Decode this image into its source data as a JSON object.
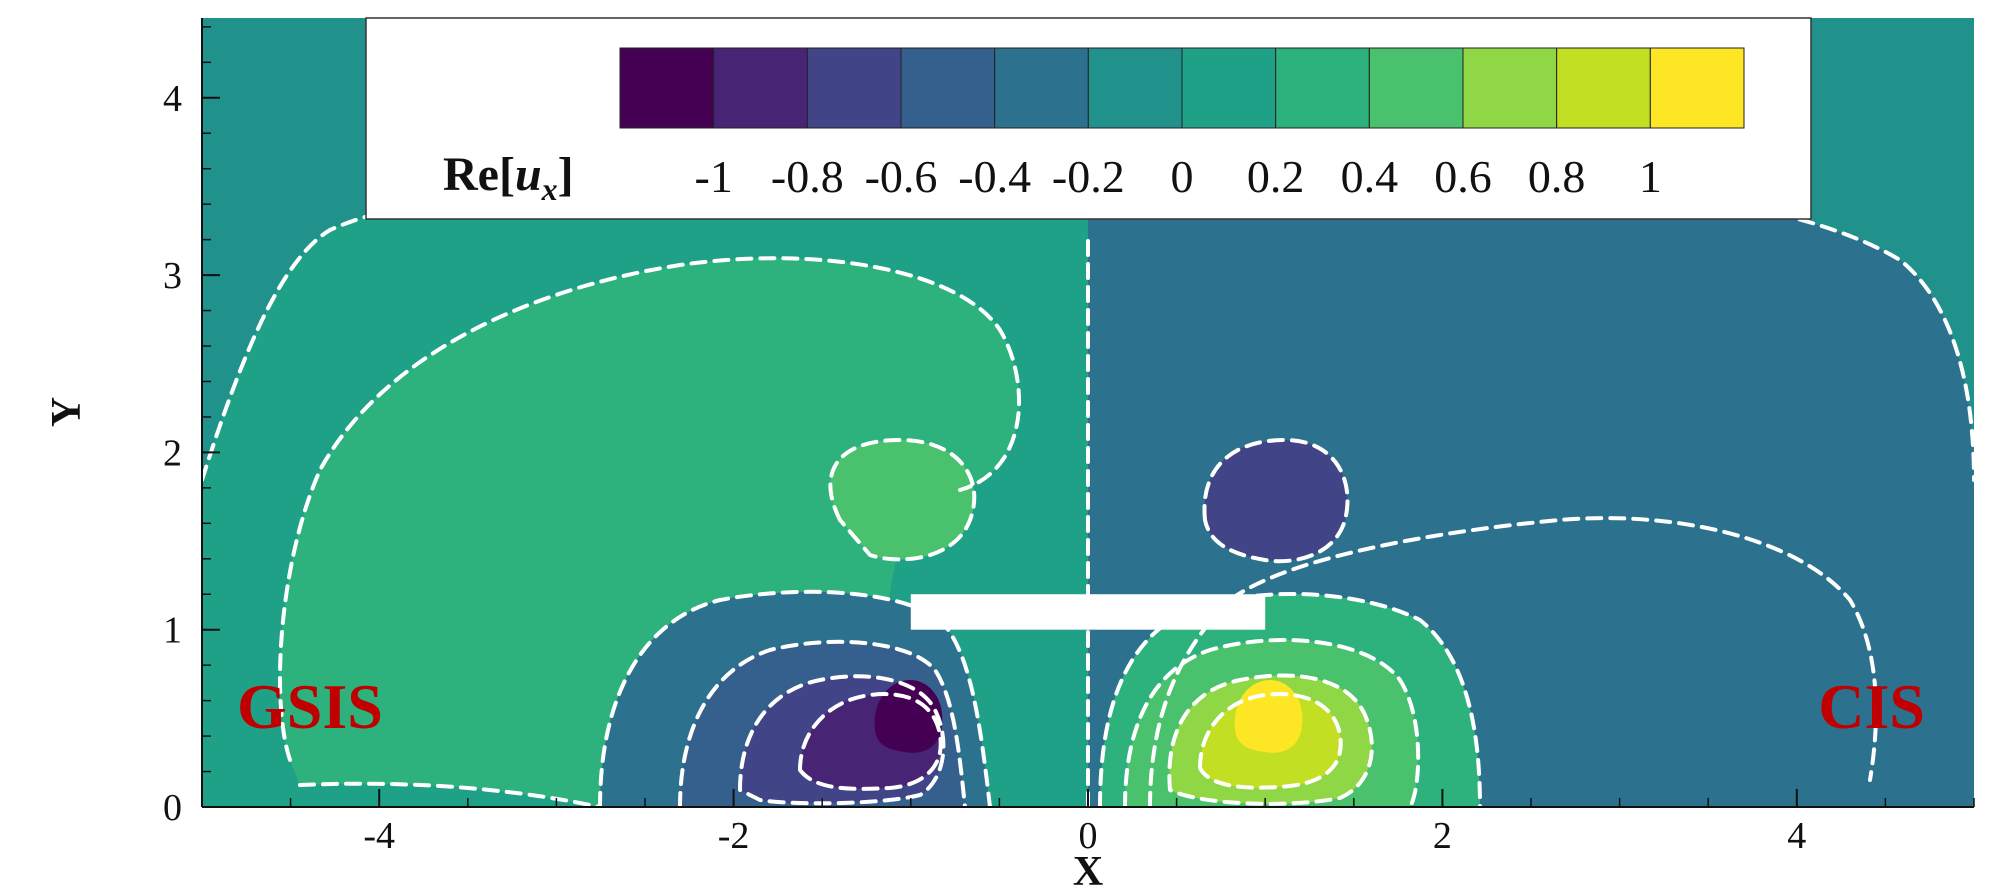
{
  "chart_data": {
    "type": "heatmap",
    "title": "",
    "xlabel": "X",
    "ylabel": "Y",
    "xlim": [
      -5,
      5
    ],
    "ylim": [
      0,
      4.45
    ],
    "x_ticks": [
      -4,
      -2,
      0,
      2,
      4
    ],
    "y_ticks": [
      0,
      1,
      2,
      3,
      4
    ],
    "colorbar": {
      "title_main": "Re[",
      "title_var": "u",
      "title_sub": "x",
      "title_end": "]",
      "levels": [
        -1,
        -0.8,
        -0.6,
        -0.4,
        -0.2,
        0,
        0.2,
        0.4,
        0.6,
        0.8,
        1
      ],
      "tick_labels": [
        "-1",
        "-0.8",
        "-0.6",
        "-0.4",
        "-0.2",
        "0",
        "0.2",
        "0.4",
        "0.6",
        "0.8",
        "1"
      ],
      "colors": [
        "#440154",
        "#482475",
        "#414487",
        "#355f8d",
        "#2c728e",
        "#21918c",
        "#1fa187",
        "#2db27d",
        "#4ac16d",
        "#8fd744",
        "#c2df23",
        "#fde725"
      ],
      "placement": "top"
    },
    "left_panel_label": "GSIS",
    "right_panel_label": "CIS",
    "label_color": "#c00000",
    "symmetry_line_x": 0,
    "plate": {
      "x_range": [
        -1,
        1
      ],
      "y_range": [
        1,
        1.2
      ]
    },
    "extrema": [
      {
        "x": -1.0,
        "y": 0.55,
        "value": -1
      },
      {
        "x": 1.0,
        "y": 0.55,
        "value": 1
      },
      {
        "x": -1.0,
        "y": 1.7,
        "value": 0.4
      },
      {
        "x": 1.0,
        "y": 1.7,
        "value": -0.4
      }
    ],
    "grid": false
  }
}
